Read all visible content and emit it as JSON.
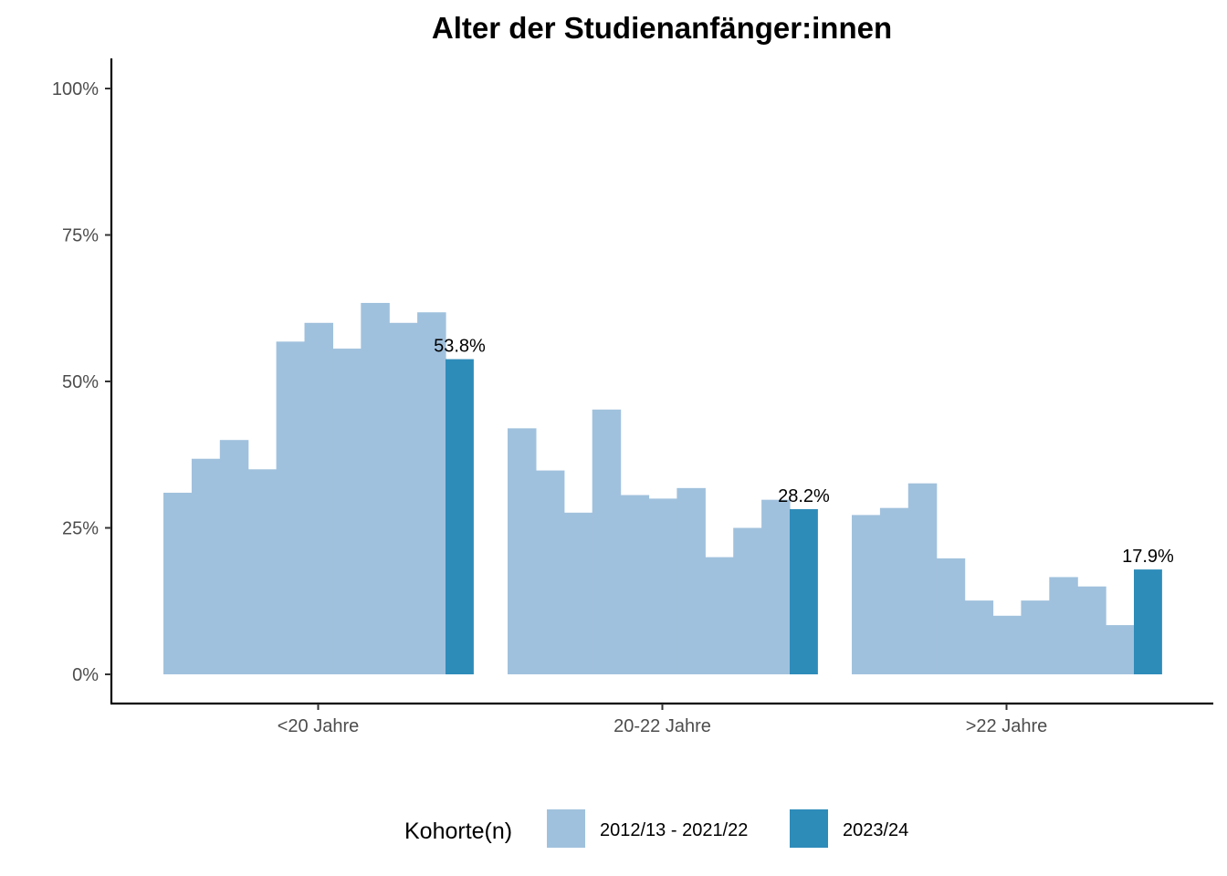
{
  "chart_data": {
    "type": "bar",
    "title": "Alter der Studienanfänger:innen",
    "xlabel": "",
    "ylabel": "",
    "ylim": [
      0,
      1.05
    ],
    "y_ticks": [
      0,
      0.25,
      0.5,
      0.75,
      1.0
    ],
    "y_tick_labels": [
      "0%",
      "25%",
      "50%",
      "75%",
      "100%"
    ],
    "categories": [
      "<20 Jahre",
      "20-22 Jahre",
      ">22 Jahre"
    ],
    "legend": {
      "title": "Kohorte(n)",
      "position": "bottom",
      "entries": [
        "2012/13 - 2021/22",
        "2023/24"
      ]
    },
    "colors": {
      "history": "#a0c1dd",
      "current": "#2e8cb9"
    },
    "series": [
      {
        "name": "2012/13 - 2021/22",
        "values": [
          [
            0.31,
            0.368,
            0.4,
            0.35,
            0.568,
            0.6,
            0.556,
            0.634,
            0.6,
            0.618
          ],
          [
            0.42,
            0.348,
            0.276,
            0.452,
            0.306,
            0.3,
            0.318,
            0.2,
            0.25,
            0.298
          ],
          [
            0.272,
            0.284,
            0.326,
            0.198,
            0.126,
            0.1,
            0.126,
            0.166,
            0.15,
            0.084
          ]
        ]
      },
      {
        "name": "2023/24",
        "values": [
          0.538,
          0.282,
          0.179
        ],
        "labels": [
          "53.8%",
          "28.2%",
          "17.9%"
        ]
      }
    ]
  }
}
